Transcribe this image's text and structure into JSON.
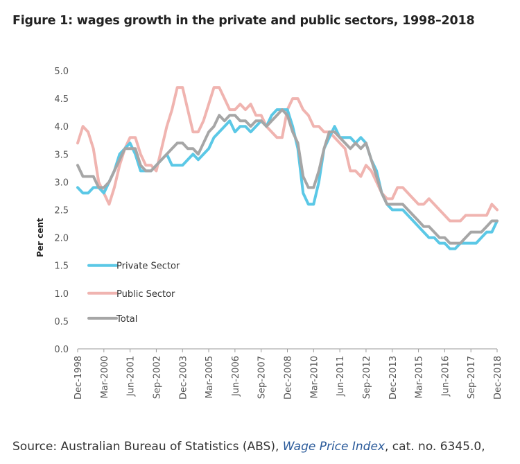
{
  "figure": {
    "title": "Figure 1: wages growth in the private and public sectors, 1998–2018"
  },
  "source": {
    "prefix": "Source: Australian Bureau of Statistics (ABS), ",
    "link_text": "Wage Price Index",
    "suffix": ", cat. no. 6345.0,"
  },
  "chart_data": {
    "type": "line",
    "title": "Figure 1: wages growth in the private and public sectors, 1998–2018",
    "xlabel": "",
    "ylabel": "Per cent",
    "ylim": [
      0,
      5
    ],
    "yticks": [
      "0.0",
      "0.5",
      "1.0",
      "1.5",
      "2.0",
      "2.5",
      "3.0",
      "3.5",
      "4.0",
      "4.5",
      "5.0"
    ],
    "ytick_values": [
      0,
      0.5,
      1,
      1.5,
      2,
      2.5,
      3,
      3.5,
      4,
      4.5,
      5
    ],
    "xtick_labels": [
      "Dec-1998",
      "Mar-2000",
      "Jun-2001",
      "Sep-2002",
      "Dec-2003",
      "Mar-2005",
      "Jun-2006",
      "Sep-2007",
      "Dec-2008",
      "Mar-2010",
      "Jun-2011",
      "Sep-2012",
      "Dec-2013",
      "Mar-2015",
      "Jun-2016",
      "Sep-2017",
      "Dec-2018"
    ],
    "xtick_indices": [
      0,
      5,
      10,
      15,
      20,
      25,
      30,
      35,
      40,
      45,
      50,
      55,
      60,
      65,
      70,
      75,
      80
    ],
    "x_start": "Dec-1998",
    "x_end": "Dec-2018",
    "x_frequency": "quarterly",
    "grid": false,
    "legend_position": "lower-left",
    "series": [
      {
        "name": "Private Sector",
        "color": "#5bc8e6",
        "values": [
          2.9,
          2.8,
          2.8,
          2.9,
          2.9,
          2.8,
          3.0,
          3.2,
          3.5,
          3.6,
          3.7,
          3.5,
          3.2,
          3.2,
          3.2,
          3.3,
          3.4,
          3.5,
          3.3,
          3.3,
          3.3,
          3.4,
          3.5,
          3.4,
          3.5,
          3.6,
          3.8,
          3.9,
          4.0,
          4.1,
          3.9,
          4.0,
          4.0,
          3.9,
          4.0,
          4.1,
          4.0,
          4.2,
          4.3,
          4.3,
          4.3,
          4.0,
          3.6,
          2.8,
          2.6,
          2.6,
          3.0,
          3.6,
          3.8,
          4.0,
          3.8,
          3.8,
          3.8,
          3.7,
          3.8,
          3.7,
          3.4,
          3.2,
          2.8,
          2.6,
          2.5,
          2.5,
          2.5,
          2.4,
          2.3,
          2.2,
          2.1,
          2.0,
          2.0,
          1.9,
          1.9,
          1.8,
          1.8,
          1.9,
          1.9,
          1.9,
          1.9,
          2.0,
          2.1,
          2.1,
          2.3
        ]
      },
      {
        "name": "Public Sector",
        "color": "#f0b4b0",
        "values": [
          3.7,
          4.0,
          3.9,
          3.6,
          3.0,
          2.8,
          2.6,
          2.9,
          3.3,
          3.6,
          3.8,
          3.8,
          3.5,
          3.3,
          3.3,
          3.2,
          3.6,
          4.0,
          4.3,
          4.7,
          4.7,
          4.3,
          3.9,
          3.9,
          4.1,
          4.4,
          4.7,
          4.7,
          4.5,
          4.3,
          4.3,
          4.4,
          4.3,
          4.4,
          4.2,
          4.2,
          4.0,
          3.9,
          3.8,
          3.8,
          4.3,
          4.5,
          4.5,
          4.3,
          4.2,
          4.0,
          4.0,
          3.9,
          3.9,
          3.8,
          3.7,
          3.6,
          3.2,
          3.2,
          3.1,
          3.3,
          3.2,
          3.0,
          2.8,
          2.7,
          2.7,
          2.9,
          2.9,
          2.8,
          2.7,
          2.6,
          2.6,
          2.7,
          2.6,
          2.5,
          2.4,
          2.3,
          2.3,
          2.3,
          2.4,
          2.4,
          2.4,
          2.4,
          2.4,
          2.6,
          2.5
        ]
      },
      {
        "name": "Total",
        "color": "#a6a6a6",
        "values": [
          3.3,
          3.1,
          3.1,
          3.1,
          2.9,
          2.9,
          3.0,
          3.2,
          3.4,
          3.6,
          3.6,
          3.6,
          3.3,
          3.2,
          3.2,
          3.3,
          3.4,
          3.5,
          3.6,
          3.7,
          3.7,
          3.6,
          3.6,
          3.5,
          3.7,
          3.9,
          4.0,
          4.2,
          4.1,
          4.2,
          4.2,
          4.1,
          4.1,
          4.0,
          4.1,
          4.1,
          4.0,
          4.1,
          4.2,
          4.3,
          4.2,
          3.9,
          3.7,
          3.1,
          2.9,
          2.9,
          3.2,
          3.6,
          3.9,
          3.9,
          3.8,
          3.7,
          3.6,
          3.7,
          3.6,
          3.7,
          3.4,
          3.1,
          2.8,
          2.6,
          2.6,
          2.6,
          2.6,
          2.5,
          2.4,
          2.3,
          2.2,
          2.2,
          2.1,
          2.0,
          2.0,
          1.9,
          1.9,
          1.9,
          2.0,
          2.1,
          2.1,
          2.1,
          2.2,
          2.3,
          2.3
        ]
      }
    ]
  }
}
